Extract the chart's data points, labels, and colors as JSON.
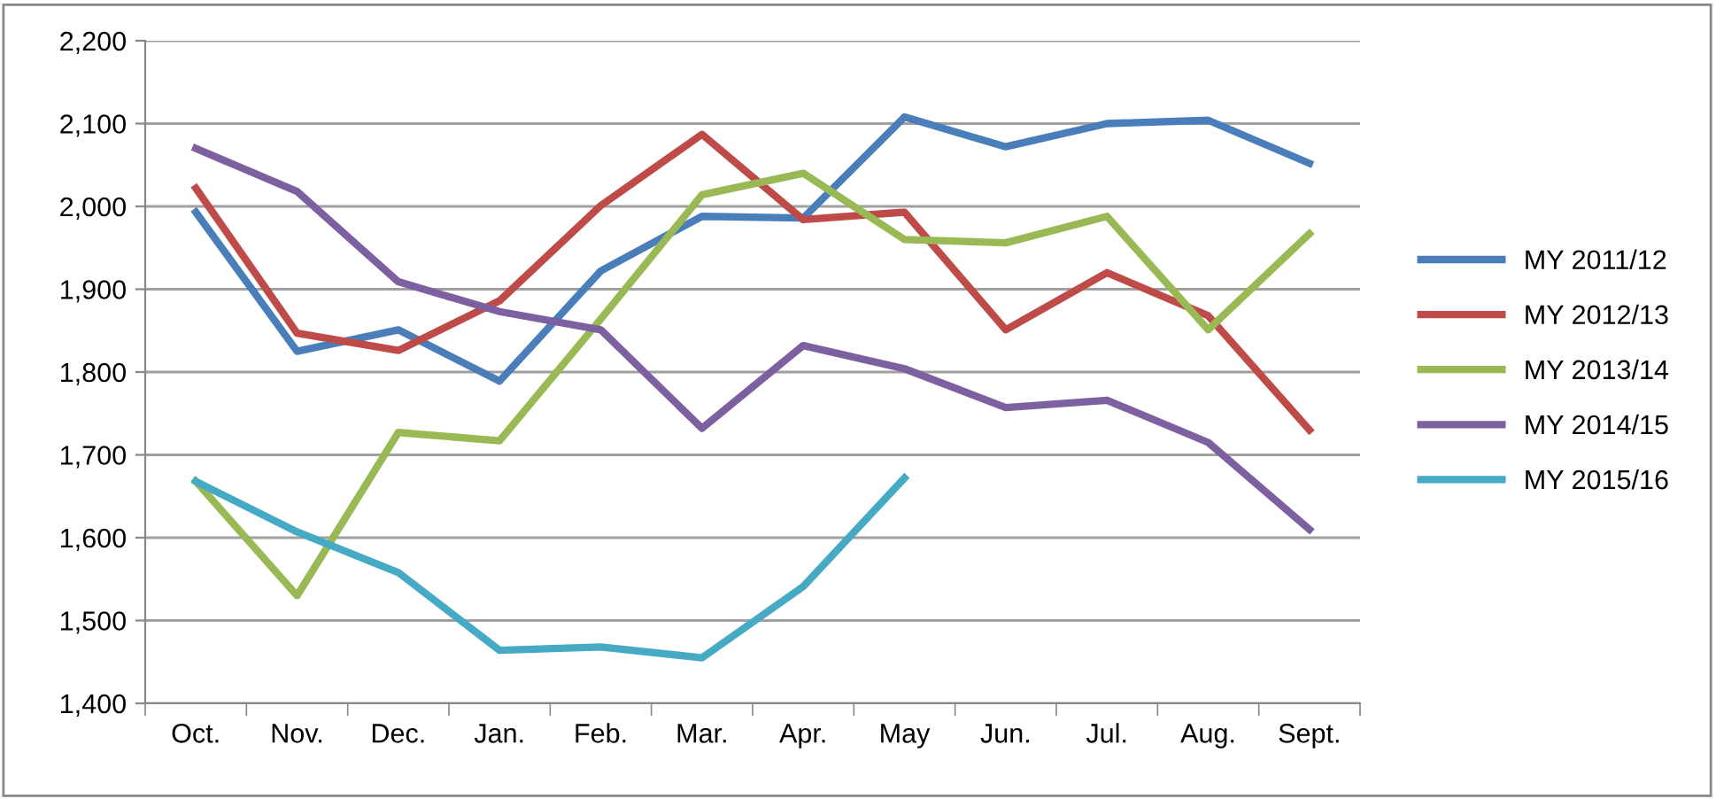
{
  "chart_data": {
    "type": "line",
    "categories": [
      "Oct.",
      "Nov.",
      "Dec.",
      "Jan.",
      "Feb.",
      "Mar.",
      "Apr.",
      "May",
      "Jun.",
      "Jul.",
      "Aug.",
      "Sept."
    ],
    "series": [
      {
        "name": "MY 2011/12",
        "color": "#4a7ebb",
        "values": [
          1993,
          1825,
          1851,
          1789,
          1922,
          1988,
          1986,
          2108,
          2072,
          2100,
          2104,
          2052
        ]
      },
      {
        "name": "MY 2012/13",
        "color": "#be4b48",
        "values": [
          2022,
          1847,
          1826,
          1886,
          2001,
          2087,
          1984,
          1993,
          1851,
          1920,
          1868,
          1730
        ]
      },
      {
        "name": "MY 2013/14",
        "color": "#98b954",
        "values": [
          1668,
          1530,
          1727,
          1717,
          1864,
          2014,
          2040,
          1960,
          1956,
          1988,
          1851,
          1967
        ]
      },
      {
        "name": "MY 2014/15",
        "color": "#7d60a0",
        "values": [
          2070,
          2018,
          1909,
          1873,
          1851,
          1732,
          1832,
          1804,
          1757,
          1766,
          1715,
          1610
        ]
      },
      {
        "name": "MY 2015/16",
        "color": "#46aac5",
        "values": [
          1668,
          1607,
          1558,
          1464,
          1468,
          1455,
          1541,
          1672,
          null,
          null,
          null,
          null
        ]
      }
    ],
    "ylim": [
      1400,
      2200
    ],
    "yticks": [
      {
        "value": 1400,
        "label": "1,400"
      },
      {
        "value": 1500,
        "label": "1,500"
      },
      {
        "value": 1600,
        "label": "1,600"
      },
      {
        "value": 1700,
        "label": "1,700"
      },
      {
        "value": 1800,
        "label": "1,800"
      },
      {
        "value": 1900,
        "label": "1,900"
      },
      {
        "value": 2000,
        "label": "2,000"
      },
      {
        "value": 2100,
        "label": "2,100"
      },
      {
        "value": 2200,
        "label": "2,200"
      }
    ],
    "grid": "y",
    "legend": "right",
    "marker": "none",
    "line_style": "solid"
  }
}
